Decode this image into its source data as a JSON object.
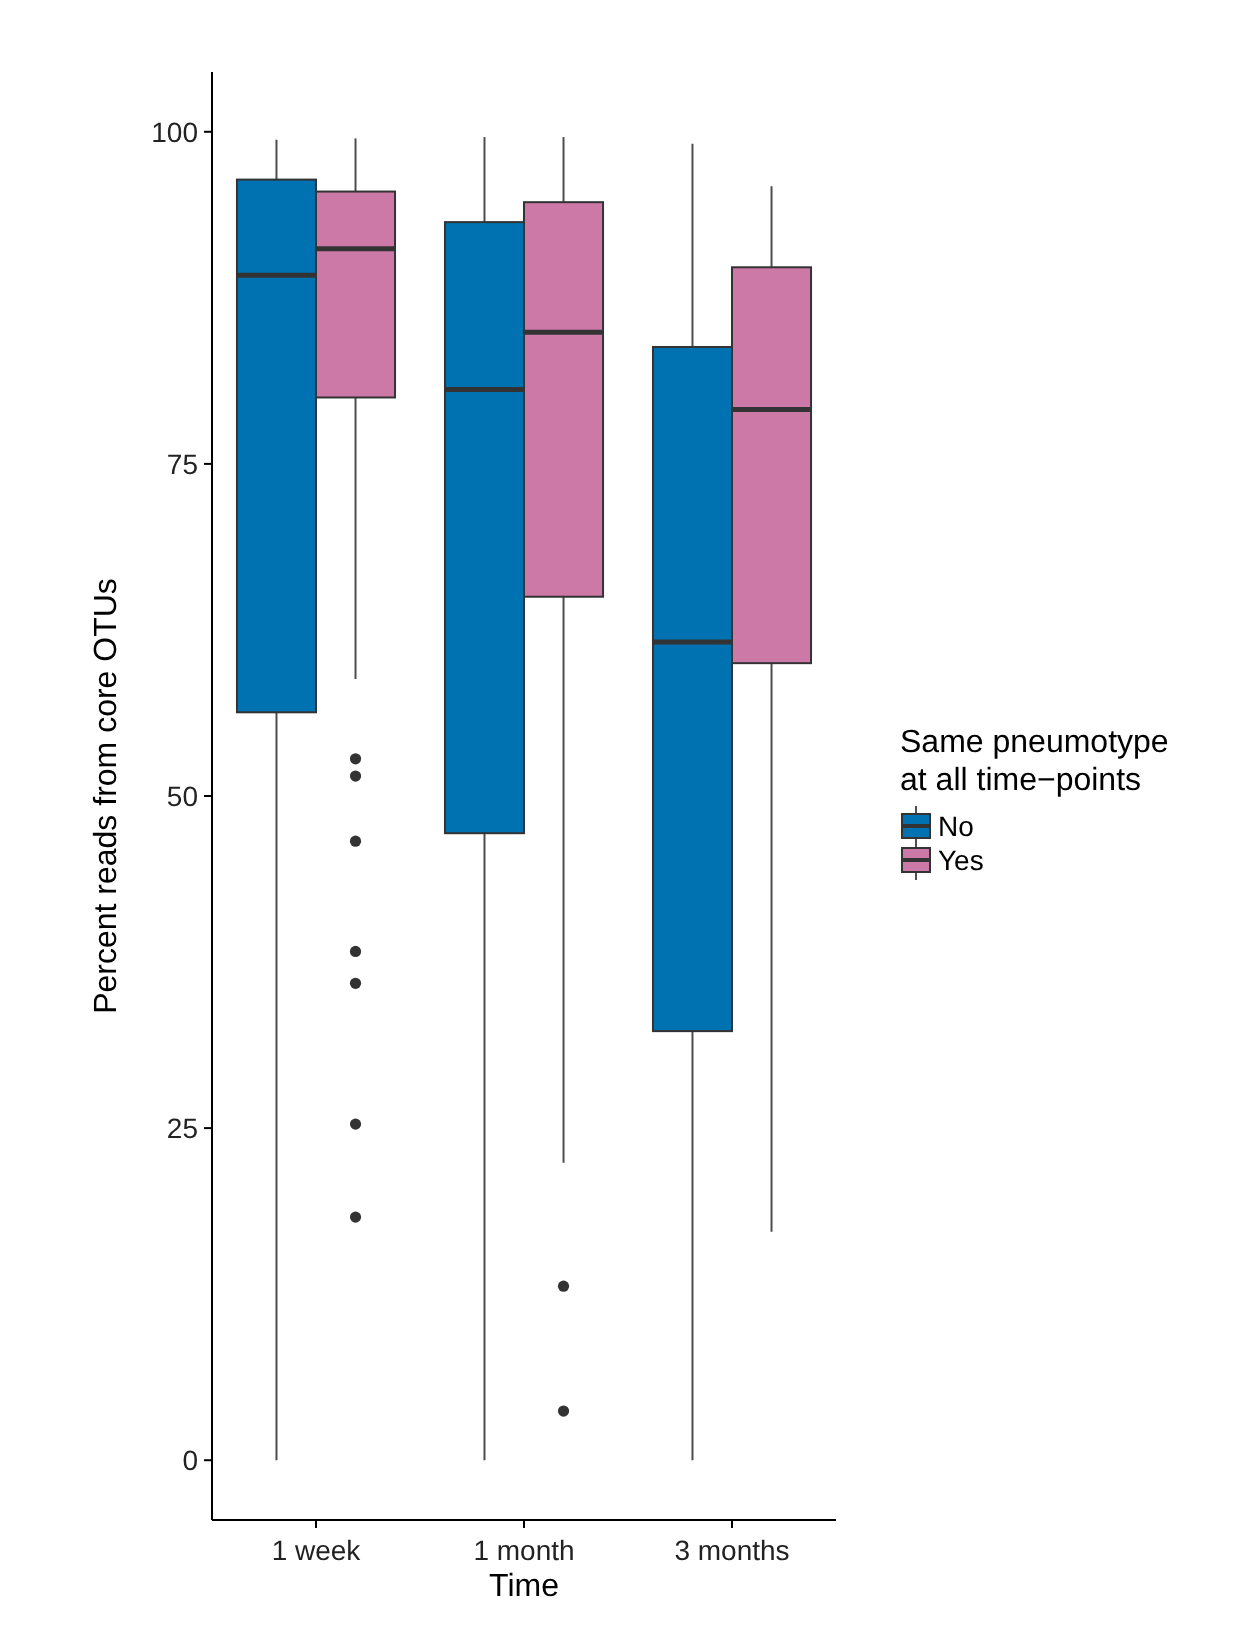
{
  "chart_data": {
    "type": "box",
    "xlabel": "Time",
    "ylabel": "Percent reads from core OTUs",
    "legend_title": "Same pneumotype\nat all time−points",
    "categories": [
      "1 week",
      "1 month",
      "3 months"
    ],
    "ylim": [
      -4.5,
      104.5
    ],
    "yticks": [
      0,
      25,
      50,
      75,
      100
    ],
    "grid": false,
    "legend": "right",
    "series": [
      {
        "name": "No",
        "color": "#0072b2",
        "boxes": [
          {
            "low": 0,
            "q1": 56.3,
            "median": 89.2,
            "q3": 96.4,
            "high": 99.4
          },
          {
            "low": 0,
            "q1": 47.2,
            "median": 80.6,
            "q3": 93.2,
            "high": 99.6
          },
          {
            "low": 0,
            "q1": 32.3,
            "median": 61.6,
            "q3": 83.8,
            "high": 99.1
          }
        ]
      },
      {
        "name": "Yes",
        "color": "#cc79a7",
        "boxes": [
          {
            "low": 58.8,
            "q1": 80.0,
            "median": 91.2,
            "q3": 95.5,
            "high": 99.5,
            "outliers": [
              52.8,
              51.5,
              46.6,
              38.3,
              35.9,
              25.3,
              18.3
            ]
          },
          {
            "low": 22.4,
            "q1": 65.0,
            "median": 84.9,
            "q3": 94.7,
            "high": 99.6,
            "outliers": [
              13.1,
              3.7
            ]
          },
          {
            "low": 17.2,
            "q1": 60.0,
            "median": 79.1,
            "q3": 89.8,
            "high": 95.9
          }
        ]
      }
    ]
  }
}
